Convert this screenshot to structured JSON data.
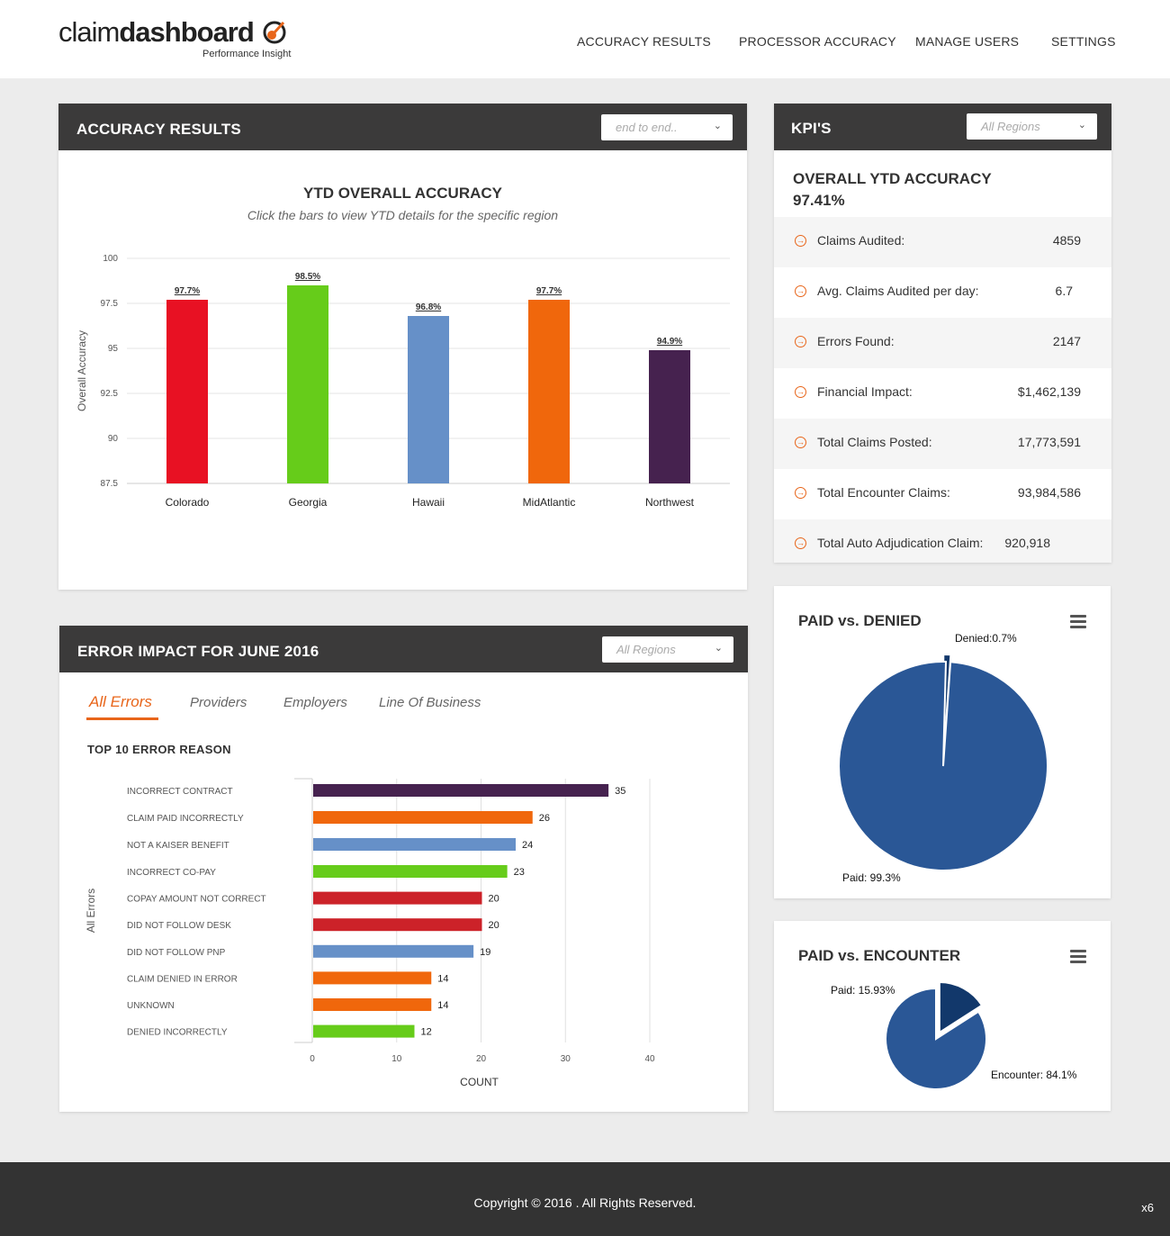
{
  "brand": {
    "logo_light": "claim",
    "logo_bold": "dashboard",
    "tagline": "Performance Insight",
    "accent_color": "#e8651a"
  },
  "nav": {
    "items": [
      {
        "label": "ACCURACY RESULTS"
      },
      {
        "label": "PROCESSOR ACCURACY"
      },
      {
        "label": "MANAGE USERS"
      },
      {
        "label": "SETTINGS"
      }
    ]
  },
  "accuracy_card": {
    "title": "ACCURACY RESULTS",
    "filter_value": "end to end..",
    "chart_title": "YTD OVERALL ACCURACY",
    "chart_subtitle": "Click the bars to view YTD details for the specific region"
  },
  "kpi_card": {
    "title": "KPI'S",
    "filter_value": "All Regions",
    "overall_label": "OVERALL YTD ACCURACY",
    "overall_value": "97.41%",
    "rows": [
      {
        "label": "Claims Audited:",
        "value": "4859"
      },
      {
        "label": "Avg. Claims Audited per day:",
        "value": "6.7"
      },
      {
        "label": "Errors Found:",
        "value": "2147"
      },
      {
        "label": "Financial Impact:",
        "value": "$1,462,139"
      },
      {
        "label": "Total Claims Posted:",
        "value": "17,773,591"
      },
      {
        "label": "Total Encounter Claims:",
        "value": "93,984,586"
      },
      {
        "label": "Total Auto Adjudication Claim:",
        "value": "920,918"
      }
    ]
  },
  "error_card": {
    "title": "ERROR IMPACT FOR JUNE 2016",
    "filter_value": "All Regions",
    "tabs": [
      {
        "label": "All Errors"
      },
      {
        "label": "Providers"
      },
      {
        "label": "Employers"
      },
      {
        "label": "Line Of Business"
      }
    ],
    "section_title": "TOP 10 ERROR REASON"
  },
  "pie1": {
    "title": "PAID vs. DENIED"
  },
  "pie2": {
    "title": "PAID vs. ENCOUNTER"
  },
  "footer": {
    "copyright": "Copyright © 2016 . All Rights Reserved.",
    "corner": "x6"
  },
  "chart_data": [
    {
      "type": "bar",
      "title": "YTD OVERALL ACCURACY",
      "ylabel": "Overall Accuracy",
      "xlabel": "",
      "ylim": [
        87.5,
        100
      ],
      "yticks": [
        87.5,
        90,
        92.5,
        95,
        97.5,
        100
      ],
      "categories": [
        "Colorado",
        "Georgia",
        "Hawaii",
        "MidAtlantic",
        "Northwest"
      ],
      "values": [
        97.7,
        98.5,
        96.8,
        97.7,
        94.9
      ],
      "labels": [
        "97.7%",
        "98.5%",
        "96.8%",
        "97.7%",
        "94.9%"
      ],
      "colors": [
        "#e81123",
        "#66cc1a",
        "#6690c8",
        "#f0670c",
        "#46224f"
      ],
      "grid": true,
      "legend": "none"
    },
    {
      "type": "bar",
      "orientation": "horizontal",
      "title": "TOP 10 ERROR REASON",
      "xlabel": "COUNT",
      "ylabel": "All Errors",
      "xlim": [
        0,
        40
      ],
      "xticks": [
        0,
        10,
        20,
        30,
        40
      ],
      "categories": [
        "INCORRECT CONTRACT",
        "CLAIM PAID INCORRECTLY",
        "NOT A KAISER BENEFIT",
        "INCORRECT CO-PAY",
        "COPAY AMOUNT NOT CORRECT",
        "DID NOT FOLLOW DESK",
        "DID NOT FOLLOW PNP",
        "CLAIM DENIED IN ERROR",
        "UNKNOWN",
        "DENIED INCORRECTLY"
      ],
      "values": [
        35,
        26,
        24,
        23,
        20,
        20,
        19,
        14,
        14,
        12
      ],
      "colors": [
        "#46224f",
        "#f0670c",
        "#6690c8",
        "#66cc1a",
        "#cc2229",
        "#cc2229",
        "#6690c8",
        "#f0670c",
        "#f0670c",
        "#66cc1a"
      ],
      "grid": true,
      "legend": "none"
    },
    {
      "type": "pie",
      "title": "PAID vs. DENIED",
      "slices": [
        {
          "name": "Denied",
          "value": 0.7,
          "label": "Denied:0.7%",
          "color": "#12386b"
        },
        {
          "name": "Paid",
          "value": 99.3,
          "label": "Paid: 99.3%",
          "color": "#2a5796"
        }
      ]
    },
    {
      "type": "pie",
      "title": "PAID vs. ENCOUNTER",
      "slices": [
        {
          "name": "Paid",
          "value": 15.93,
          "label": "Paid: 15.93%",
          "color": "#12386b"
        },
        {
          "name": "Encounter",
          "value": 84.1,
          "label": "Encounter: 84.1%",
          "color": "#2a5796"
        }
      ]
    }
  ]
}
